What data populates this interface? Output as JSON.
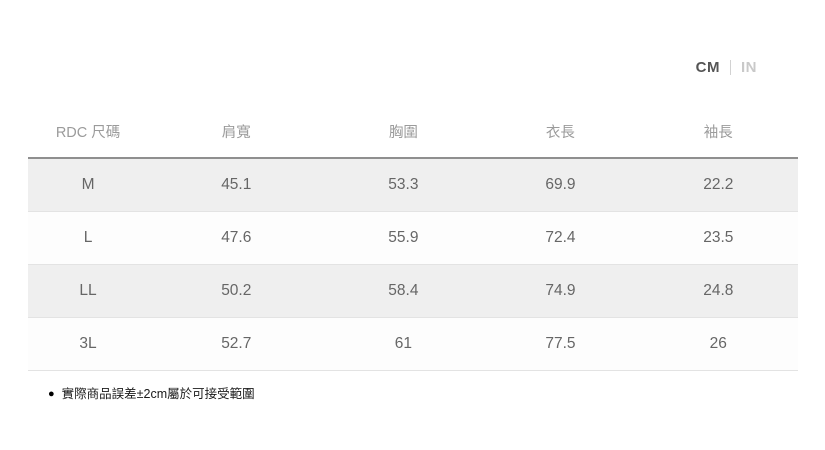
{
  "unit_toggle": {
    "options": [
      {
        "label": "CM",
        "selected": true
      },
      {
        "label": "IN",
        "selected": false
      }
    ]
  },
  "size_table": {
    "columns": [
      "RDC 尺碼",
      "肩寬",
      "胸圍",
      "衣長",
      "袖長"
    ],
    "rows": [
      {
        "size": "M",
        "values": [
          "45.1",
          "53.3",
          "69.9",
          "22.2"
        ]
      },
      {
        "size": "L",
        "values": [
          "47.6",
          "55.9",
          "72.4",
          "23.5"
        ]
      },
      {
        "size": "LL",
        "values": [
          "50.2",
          "58.4",
          "74.9",
          "24.8"
        ]
      },
      {
        "size": "3L",
        "values": [
          "52.7",
          "61",
          "77.5",
          "26"
        ]
      }
    ]
  },
  "footnote": {
    "bullet": "●",
    "text": "實際商品誤差±2cm屬於可接受範圍"
  },
  "colors": {
    "selected_unit": "#555555",
    "unselected_unit": "#c9c9c9",
    "stripe_row_bg": "#efefef",
    "header_text": "#9b9b9b",
    "cell_text": "#666666",
    "divider_dark": "#8f8f8f"
  }
}
